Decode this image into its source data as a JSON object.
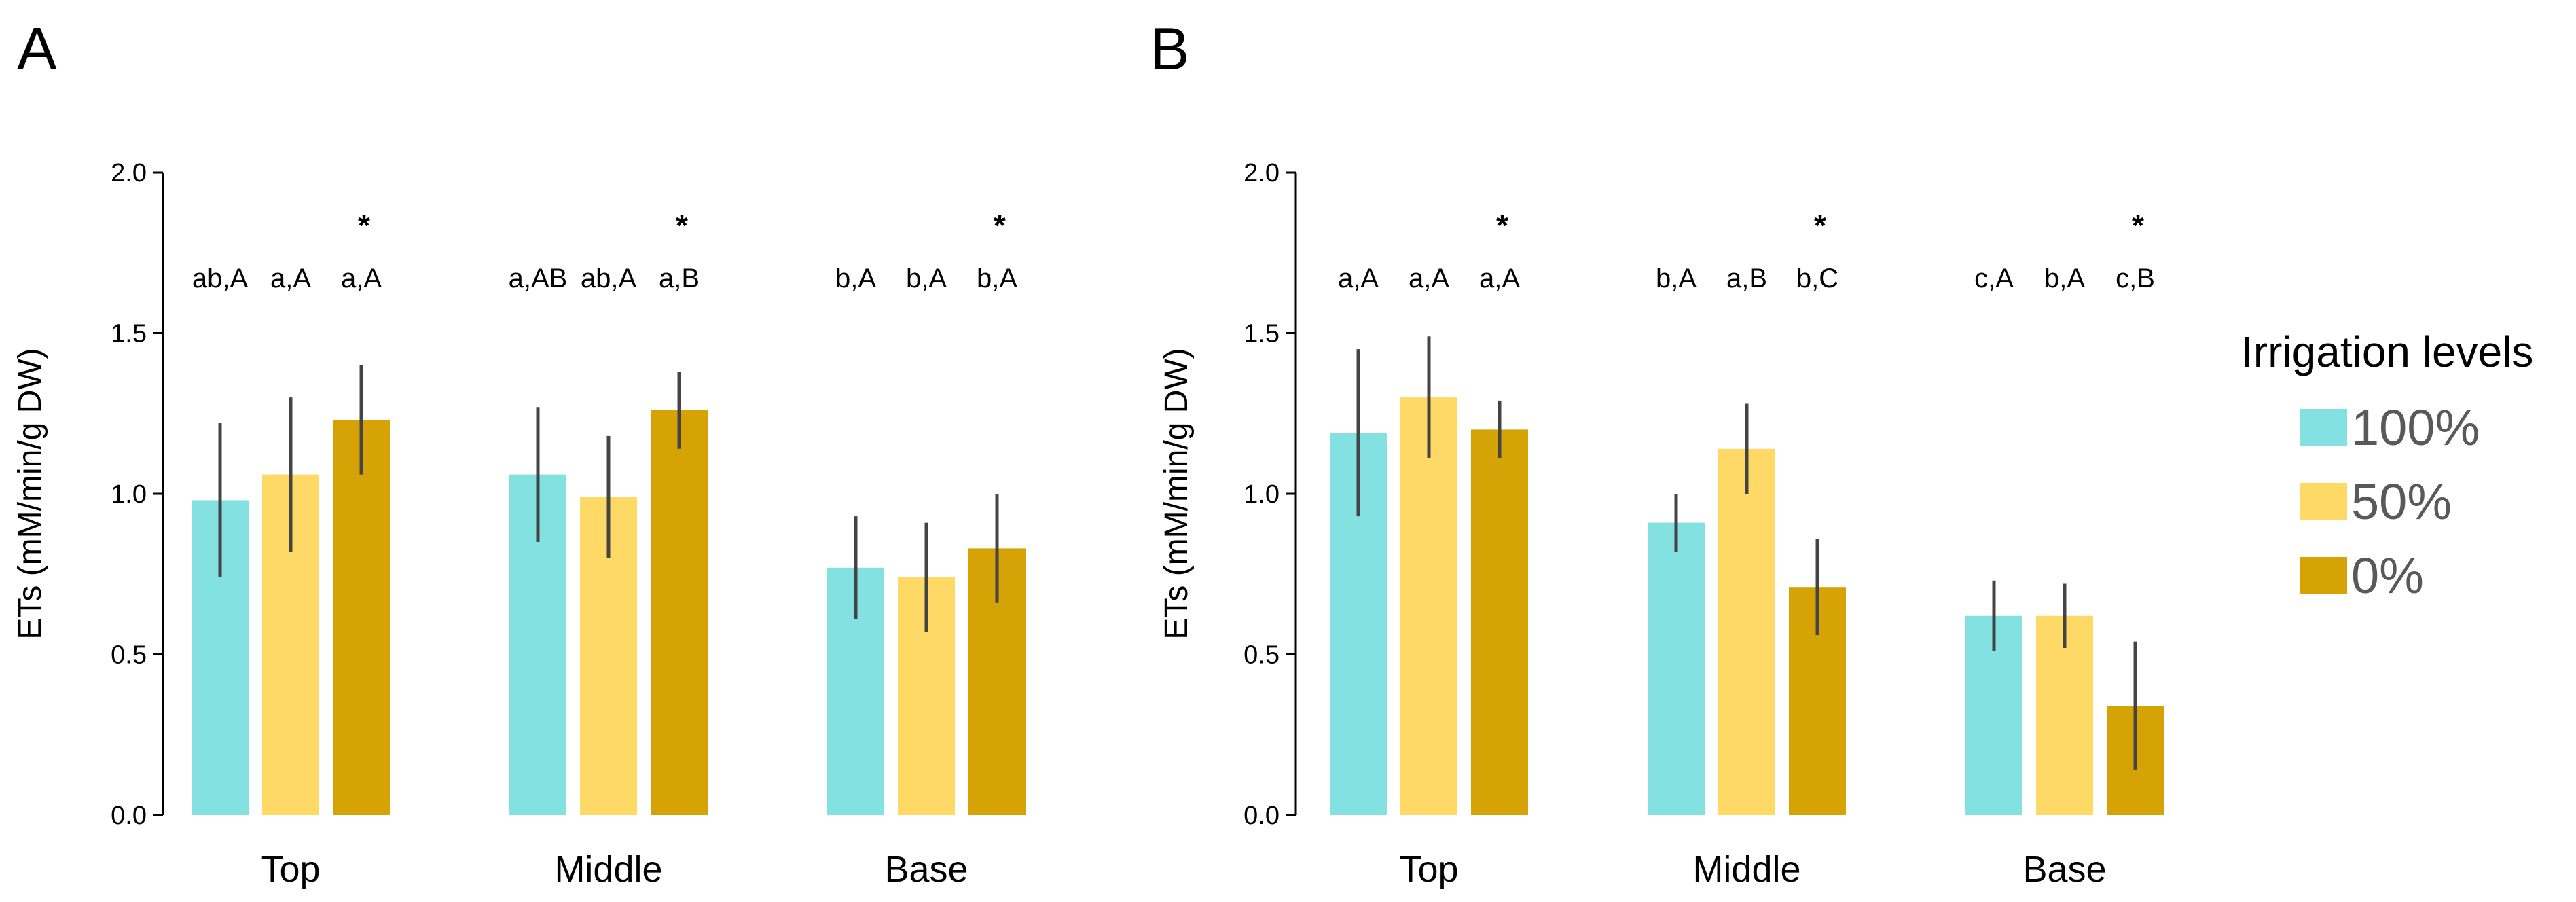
{
  "panels": [
    "A",
    "B"
  ],
  "legend": {
    "title": "Irrigation levels",
    "items": [
      "100%",
      "50%",
      "0%"
    ]
  },
  "colors": {
    "100%": "#83E1E1",
    "50%": "#FFD966",
    "0%": "#D6A306",
    "error_bar": "#444444",
    "axis": "#000000"
  },
  "chart_data": [
    {
      "panel": "A",
      "type": "bar",
      "ylabel": "ETs (mM/min/g DW)",
      "ylim": [
        0,
        2.0
      ],
      "yticks": [
        "0.0",
        "0.5",
        "1.0",
        "1.5",
        "2.0"
      ],
      "categories": [
        "Top",
        "Middle",
        "Base"
      ],
      "series": [
        {
          "name": "100%",
          "values": [
            0.98,
            1.06,
            0.77
          ],
          "errors": [
            0.24,
            0.21,
            0.16
          ]
        },
        {
          "name": "50%",
          "values": [
            1.06,
            0.99,
            0.74
          ],
          "errors": [
            0.24,
            0.19,
            0.17
          ]
        },
        {
          "name": "0%",
          "values": [
            1.23,
            1.26,
            0.83
          ],
          "errors": [
            0.17,
            0.12,
            0.17
          ]
        }
      ],
      "letters": [
        [
          "ab,A",
          "a,A",
          "a,A"
        ],
        [
          "a,AB",
          "ab,A",
          "a,B"
        ],
        [
          "b,A",
          "b,A",
          "b,A"
        ]
      ],
      "stars": [
        [
          false,
          false,
          true
        ],
        [
          false,
          false,
          true
        ],
        [
          false,
          false,
          true
        ]
      ]
    },
    {
      "panel": "B",
      "type": "bar",
      "ylabel": "ETs (mM/min/g DW)",
      "ylim": [
        0,
        2.0
      ],
      "yticks": [
        "0.0",
        "0.5",
        "1.0",
        "1.5",
        "2.0"
      ],
      "categories": [
        "Top",
        "Middle",
        "Base"
      ],
      "series": [
        {
          "name": "100%",
          "values": [
            1.19,
            0.91,
            0.62
          ],
          "errors": [
            0.26,
            0.09,
            0.11
          ]
        },
        {
          "name": "50%",
          "values": [
            1.3,
            1.14,
            0.62
          ],
          "errors": [
            0.19,
            0.14,
            0.1
          ]
        },
        {
          "name": "0%",
          "values": [
            1.2,
            0.71,
            0.34
          ],
          "errors": [
            0.09,
            0.15,
            0.2
          ]
        }
      ],
      "letters": [
        [
          "a,A",
          "a,A",
          "a,A"
        ],
        [
          "b,A",
          "a,B",
          "b,C"
        ],
        [
          "c,A",
          "b,A",
          "c,B"
        ]
      ],
      "stars": [
        [
          false,
          false,
          true
        ],
        [
          false,
          false,
          true
        ],
        [
          false,
          false,
          true
        ]
      ]
    }
  ],
  "star_symbol": "*"
}
